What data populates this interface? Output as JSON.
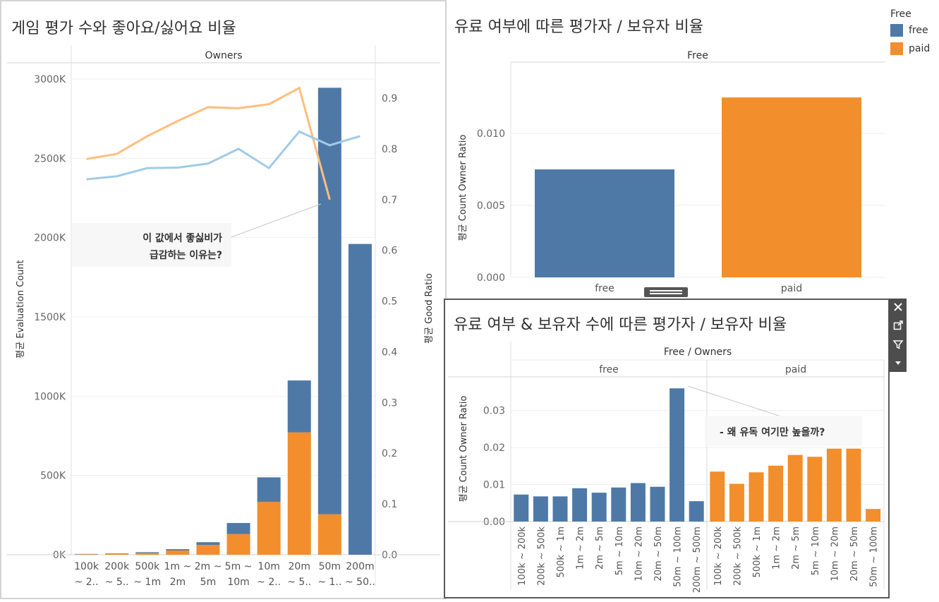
{
  "colors": {
    "free": "#4e79a7",
    "paid": "#f28e2b",
    "line_good": "#ffbe7d",
    "line_blue": "#a0cbe8"
  },
  "legend": {
    "title": "Free",
    "items": [
      {
        "label": "free",
        "color": "#4e79a7"
      },
      {
        "label": "paid",
        "color": "#f28e2b"
      }
    ]
  },
  "panels": {
    "left": {
      "title": "게임 평가 수와 좋아요/싫어요 비율",
      "header": "Owners",
      "ylabel_left": "평균 Evaluation Count",
      "ylabel_right": "평균 Good Ratio",
      "annotation": [
        "이 값에서 좋싫비가",
        "급감하는 이유는?"
      ]
    },
    "top_right": {
      "title": "유료 여부에 따른 평가자 / 보유자 비율",
      "header": "Free",
      "ylabel": "평균 Count Owner Ratio"
    },
    "bottom_right": {
      "title": "유료 여부 & 보유자 수에 따른  평가자 / 보유자 비율",
      "header": "Free / Owners",
      "groups": [
        "free",
        "paid"
      ],
      "ylabel": "평균 Count Owner Ratio",
      "annotation": "- 왜 유독 여기만 높을까?"
    }
  },
  "chart_data": [
    {
      "type": "bar",
      "title": "게임 평가 수와 좋아요/싫어요 비율",
      "header": "Owners",
      "categories": [
        [
          "100k",
          "~ 2.."
        ],
        [
          "200k",
          "~ 5.."
        ],
        [
          "500k",
          "~ 1m"
        ],
        [
          "1m ~",
          "2m"
        ],
        [
          "2m ~",
          "5m"
        ],
        [
          "5m ~",
          "10m"
        ],
        [
          "10m",
          "~ 2.."
        ],
        [
          "20m",
          "~ 5.."
        ],
        [
          "50m",
          "~ 1.."
        ],
        [
          "200m",
          "~ 50.."
        ]
      ],
      "stacked": true,
      "series": [
        {
          "name": "free",
          "values": [
            2000,
            3000,
            5000,
            8000,
            17000,
            70000,
            155000,
            327000,
            2690000,
            1960000
          ]
        },
        {
          "name": "paid",
          "values": [
            3000,
            5000,
            11000,
            27000,
            62000,
            130000,
            333000,
            772000,
            255000,
            0
          ]
        }
      ],
      "ylim": [
        0,
        3000000
      ],
      "yticks": [
        0,
        500000,
        1000000,
        1500000,
        2000000,
        2500000,
        3000000
      ],
      "ytick_labels": [
        "0K",
        "500K",
        "1000K",
        "1500K",
        "2000K",
        "2500K",
        "3000K"
      ],
      "ylabel": "평균 Evaluation Count",
      "y2label": "평균 Good Ratio",
      "y2lim": [
        0,
        0.94
      ],
      "y2ticks": [
        "0.0",
        "0.1",
        "0.2",
        "0.3",
        "0.4",
        "0.5",
        "0.6",
        "0.7",
        "0.8",
        "0.9"
      ],
      "lines": [
        {
          "color": "#ffbe7d",
          "values": [
            0.78,
            0.79,
            0.825,
            0.855,
            0.882,
            0.88,
            0.888,
            0.92,
            0.7,
            null
          ]
        },
        {
          "color": "#a0cbe8",
          "values": [
            0.74,
            0.746,
            0.762,
            0.763,
            0.771,
            0.8,
            0.762,
            0.834,
            0.807,
            0.825
          ]
        }
      ],
      "annotation": [
        "이 값에서 좋싫비가",
        "급감하는 이유는?"
      ]
    },
    {
      "type": "bar",
      "title": "유료 여부에 따른 평가자 / 보유자 비율",
      "header": "Free",
      "categories": [
        "free",
        "paid"
      ],
      "values": [
        0.0075,
        0.0125
      ],
      "colors": [
        "#4e79a7",
        "#f28e2b"
      ],
      "ylim": [
        0,
        0.01373
      ],
      "yticks": [
        "0.000",
        "0.005",
        "0.010"
      ],
      "ylabel": "평균 Count Owner Ratio"
    },
    {
      "type": "bar",
      "title": "유료 여부 & 보유자 수에 따른  평가자 / 보유자 비율",
      "header": "Free / Owners",
      "groups": [
        {
          "name": "free",
          "categories": [
            "100k ~ 200k",
            "200k ~ 500k",
            "500k ~ 1m",
            "1m ~ 2m",
            "2m ~ 5m",
            "5m ~ 10m",
            "10m ~ 20m",
            "20m ~ 50m",
            "50m ~ 100m",
            "200m ~ 500m"
          ],
          "values": [
            0.0073,
            0.0068,
            0.0068,
            0.009,
            0.0078,
            0.0092,
            0.0104,
            0.0094,
            0.036,
            0.0055
          ]
        },
        {
          "name": "paid",
          "categories": [
            "100k ~ 200k",
            "200k ~ 500k",
            "500k ~ 1m",
            "1m ~ 2m",
            "2m ~ 5m",
            "5m ~ 10m",
            "10m ~ 20m",
            "20m ~ 50m",
            "50m ~ 100m"
          ],
          "values": [
            0.0135,
            0.0102,
            0.0133,
            0.0151,
            0.018,
            0.0175,
            0.0197,
            0.0197,
            0.0034
          ]
        }
      ],
      "ylim": [
        0,
        0.037
      ],
      "yticks": [
        "0.00",
        "0.01",
        "0.02",
        "0.03"
      ],
      "ylabel": "평균 Count Owner Ratio",
      "annotation": "- 왜 유독 여기만 높을까?"
    }
  ]
}
